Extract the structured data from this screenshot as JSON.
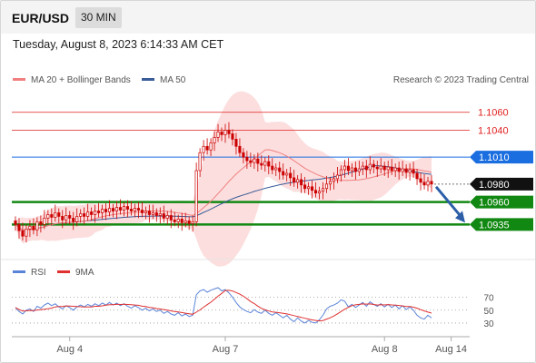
{
  "header": {
    "symbol": "EUR/USD",
    "interval": "30 MIN"
  },
  "timestamp": "Tuesday, August 8, 2023 6:14:33 AM CET",
  "legend": {
    "ma20": "MA 20 + Bollinger Bands",
    "ma50": "MA 50",
    "rsi": "RSI",
    "ma9": "9MA"
  },
  "credit": "Research © 2023 Trading Central",
  "colors": {
    "candle": "#cc0000",
    "ma20": "#f08080",
    "bands_fill": "#fcdede",
    "ma50": "#3a5d99",
    "resistance": "#e02020",
    "pivot": "#1a6ee0",
    "support": "#118811",
    "arrow": "#2c5fa8",
    "rsi": "#5a84d8",
    "rsi_ma": "#e03030"
  },
  "chart_data": {
    "type": "candlestick",
    "ylim": [
      1.0905,
      1.1085
    ],
    "x_ticks": [
      "Aug 4",
      "Aug 7",
      "Aug 8",
      "Aug 14"
    ],
    "last_price": "1.0980",
    "levels": [
      {
        "value": 1.106,
        "label": "1.1060",
        "kind": "resistance"
      },
      {
        "value": 1.104,
        "label": "1.1040",
        "kind": "resistance"
      },
      {
        "value": 1.101,
        "label": "1.1010",
        "kind": "pivot"
      },
      {
        "value": 1.096,
        "label": "1.0960",
        "kind": "support"
      },
      {
        "value": 1.0935,
        "label": "1.0935",
        "kind": "support"
      }
    ],
    "close": [
      1.0935,
      1.0928,
      1.0922,
      1.093,
      1.0933,
      1.0929,
      1.0938,
      1.0935,
      1.0942,
      1.0946,
      1.0943,
      1.0948,
      1.0944,
      1.094,
      1.0945,
      1.0942,
      1.0938,
      1.0944,
      1.0947,
      1.0944,
      1.0949,
      1.0946,
      1.095,
      1.0948,
      1.0952,
      1.0949,
      1.0953,
      1.095,
      1.0954,
      1.0951,
      1.0955,
      1.0952,
      1.095,
      1.0953,
      1.0951,
      1.0948,
      1.095,
      1.0946,
      1.0948,
      1.0945,
      1.0947,
      1.0942,
      1.0945,
      1.094,
      1.0938,
      1.0941,
      1.0937,
      1.0939,
      1.0936,
      1.0938,
      1.0995,
      1.1015,
      1.1022,
      1.1018,
      1.1026,
      1.1032,
      1.1038,
      1.1035,
      1.104,
      1.1036,
      1.103,
      1.1022,
      1.1015,
      1.101,
      1.1006,
      1.1004,
      1.1008,
      1.1003,
      1.1001,
      1.1005,
      1.1,
      1.0996,
      1.0998,
      1.0994,
      1.099,
      1.0992,
      1.0987,
      1.0982,
      1.0985,
      1.0979,
      1.0975,
      1.0977,
      1.0973,
      1.097,
      1.0972,
      1.0975,
      1.098,
      1.0983,
      1.0986,
      1.099,
      1.0996,
      1.1,
      1.0995,
      1.0998,
      1.0994,
      1.0997,
      1.1,
      1.0996,
      1.1002,
      1.0999,
      1.0997,
      1.1,
      1.0996,
      1.0999,
      1.0995,
      1.0998,
      1.0994,
      1.0997,
      1.0993,
      1.0996,
      1.0992,
      1.0986,
      1.0982,
      1.0979,
      1.0983,
      1.098
    ],
    "rsi": [
      54,
      48,
      44,
      50,
      52,
      48,
      56,
      53,
      58,
      61,
      57,
      60,
      55,
      52,
      57,
      54,
      50,
      55,
      58,
      55,
      59,
      56,
      60,
      57,
      61,
      58,
      62,
      58,
      61,
      57,
      60,
      56,
      53,
      57,
      54,
      50,
      53,
      49,
      52,
      48,
      50,
      45,
      48,
      44,
      42,
      46,
      41,
      44,
      40,
      42,
      74,
      80,
      82,
      78,
      81,
      83,
      85,
      80,
      82,
      77,
      70,
      62,
      55,
      51,
      48,
      46,
      51,
      47,
      45,
      50,
      45,
      42,
      46,
      42,
      38,
      42,
      36,
      32,
      38,
      33,
      30,
      34,
      31,
      30,
      35,
      42,
      52,
      56,
      58,
      61,
      66,
      64,
      55,
      59,
      54,
      58,
      62,
      56,
      63,
      59,
      56,
      60,
      55,
      59,
      54,
      58,
      52,
      57,
      51,
      55,
      50,
      42,
      38,
      36,
      42,
      38
    ],
    "rsi_ticks": [
      70,
      50,
      30
    ],
    "rsi_ylim": [
      20,
      85
    ]
  }
}
